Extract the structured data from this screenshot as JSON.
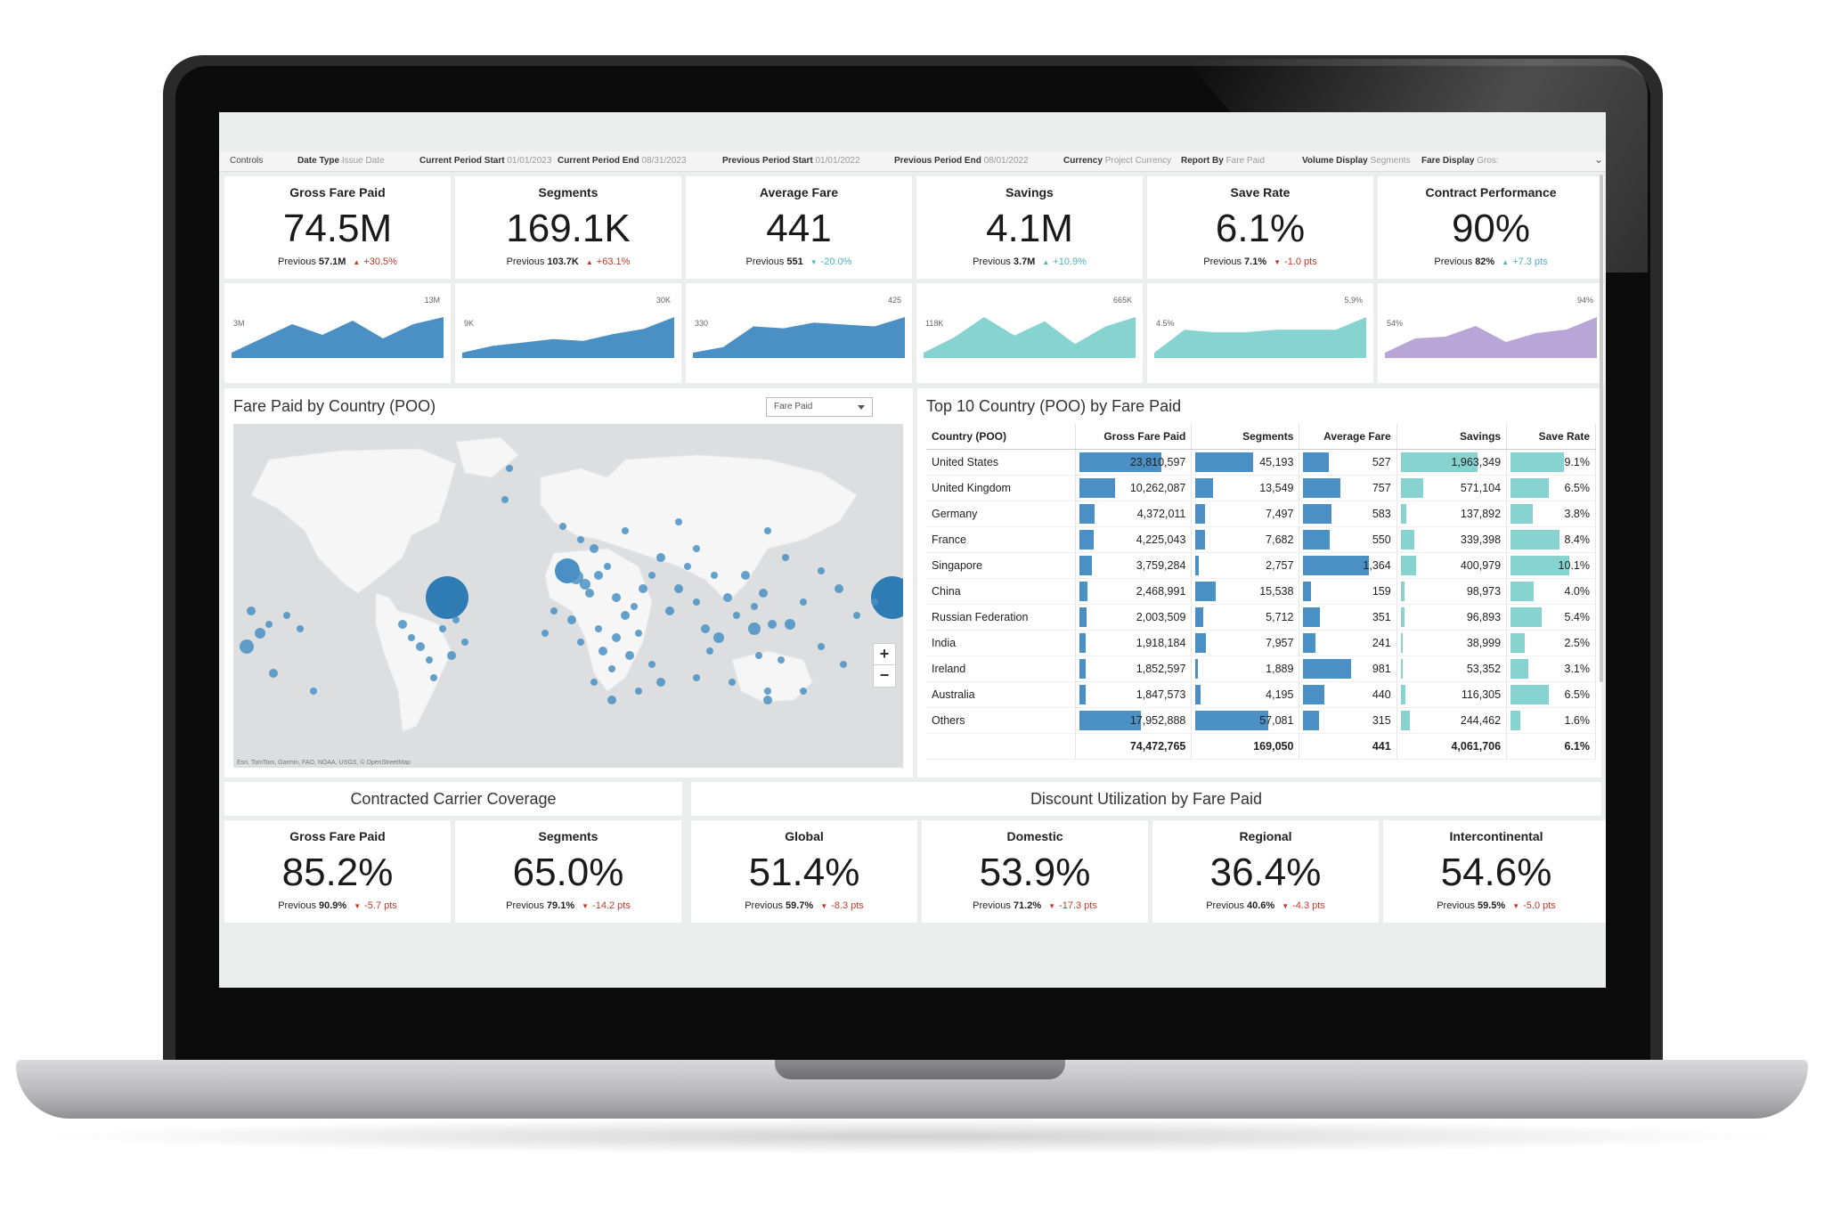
{
  "controls": {
    "label": "Controls",
    "items": [
      {
        "k": "Date Type",
        "v": "Issue Date"
      },
      {
        "k": "Current Period Start",
        "v": "01/01/2023"
      },
      {
        "k": "Current Period End",
        "v": "08/31/2023"
      },
      {
        "k": "Previous Period Start",
        "v": "01/01/2022"
      },
      {
        "k": "Previous Period End",
        "v": "08/01/2022"
      },
      {
        "k": "Currency",
        "v": "Project Currency"
      },
      {
        "k": "Report By",
        "v": "Fare Paid"
      },
      {
        "k": "Volume Display",
        "v": "Segments"
      },
      {
        "k": "Fare Display",
        "v": "Gros:"
      }
    ]
  },
  "kpis": [
    {
      "title": "Gross Fare Paid",
      "value": "74.5M",
      "prev_label": "Previous",
      "prev": "57.1M",
      "change": "+30.5%",
      "dir": "up",
      "tone": "red"
    },
    {
      "title": "Segments",
      "value": "169.1K",
      "prev_label": "Previous",
      "prev": "103.7K",
      "change": "+63.1%",
      "dir": "up",
      "tone": "red"
    },
    {
      "title": "Average Fare",
      "value": "441",
      "prev_label": "Previous",
      "prev": "551",
      "change": "-20.0%",
      "dir": "down",
      "tone": "teal"
    },
    {
      "title": "Savings",
      "value": "4.1M",
      "prev_label": "Previous",
      "prev": "3.7M",
      "change": "+10.9%",
      "dir": "up",
      "tone": "teal"
    },
    {
      "title": "Save Rate",
      "value": "6.1%",
      "prev_label": "Previous",
      "prev": "7.1%",
      "change": "-1.0 pts",
      "dir": "down",
      "tone": "red"
    },
    {
      "title": "Contract Performance",
      "value": "90%",
      "prev_label": "Previous",
      "prev": "82%",
      "change": "+7.3 pts",
      "dir": "up",
      "tone": "teal"
    }
  ],
  "sparklines": [
    {
      "lo": "3M",
      "hi": "13M",
      "color": "#4a90c4",
      "values": [
        3,
        7,
        11,
        8,
        12,
        7,
        11,
        13
      ]
    },
    {
      "lo": "9K",
      "hi": "30K",
      "color": "#4a90c4",
      "values": [
        9,
        13,
        15,
        17,
        16,
        20,
        23,
        30
      ]
    },
    {
      "lo": "330",
      "hi": "425",
      "color": "#4a90c4",
      "values": [
        330,
        345,
        400,
        395,
        410,
        405,
        400,
        425
      ]
    },
    {
      "lo": "118K",
      "hi": "665K",
      "color": "#86d3d0",
      "values": [
        118,
        350,
        665,
        380,
        600,
        250,
        520,
        665
      ]
    },
    {
      "lo": "4.5%",
      "hi": "5.9%",
      "color": "#86d3d0",
      "values": [
        4.5,
        5.4,
        5.3,
        5.3,
        5.4,
        5.4,
        5.4,
        5.9
      ]
    },
    {
      "lo": "54%",
      "hi": "94%",
      "color": "#b7a6d6",
      "values": [
        54,
        70,
        72,
        84,
        66,
        76,
        80,
        94
      ]
    }
  ],
  "map_panel": {
    "title": "Fare Paid by Country (POO)",
    "dropdown": "Fare Paid",
    "zoom_in": "+",
    "zoom_out": "−",
    "attribution": "Esri, TomTom, Garmin, FAO, NOAA, USGS, © OpenStreetMap"
  },
  "table_panel": {
    "title": "Top 10 Country (POO) by Fare Paid",
    "columns": [
      "Country (POO)",
      "Gross Fare Paid",
      "Segments",
      "Average Fare",
      "Savings",
      "Save Rate"
    ],
    "rows": [
      {
        "country": "United States",
        "gfp": "23,810,597",
        "seg": "45,193",
        "avg": "527",
        "sav": "1,963,349",
        "rate": "9.1%"
      },
      {
        "country": "United Kingdom",
        "gfp": "10,262,087",
        "seg": "13,549",
        "avg": "757",
        "sav": "571,104",
        "rate": "6.5%"
      },
      {
        "country": "Germany",
        "gfp": "4,372,011",
        "seg": "7,497",
        "avg": "583",
        "sav": "137,892",
        "rate": "3.8%"
      },
      {
        "country": "France",
        "gfp": "4,225,043",
        "seg": "7,682",
        "avg": "550",
        "sav": "339,398",
        "rate": "8.4%"
      },
      {
        "country": "Singapore",
        "gfp": "3,759,284",
        "seg": "2,757",
        "avg": "1,364",
        "sav": "400,979",
        "rate": "10.1%"
      },
      {
        "country": "China",
        "gfp": "2,468,991",
        "seg": "15,538",
        "avg": "159",
        "sav": "98,973",
        "rate": "4.0%"
      },
      {
        "country": "Russian Federation",
        "gfp": "2,003,509",
        "seg": "5,712",
        "avg": "351",
        "sav": "96,893",
        "rate": "5.4%"
      },
      {
        "country": "India",
        "gfp": "1,918,184",
        "seg": "7,957",
        "avg": "241",
        "sav": "38,999",
        "rate": "2.5%"
      },
      {
        "country": "Ireland",
        "gfp": "1,852,597",
        "seg": "1,889",
        "avg": "981",
        "sav": "53,352",
        "rate": "3.1%"
      },
      {
        "country": "Australia",
        "gfp": "1,847,573",
        "seg": "4,195",
        "avg": "440",
        "sav": "116,305",
        "rate": "6.5%"
      },
      {
        "country": "Others",
        "gfp": "17,952,888",
        "seg": "57,081",
        "avg": "315",
        "sav": "244,462",
        "rate": "1.6%"
      }
    ],
    "total": {
      "country": "",
      "gfp": "74,472,765",
      "seg": "169,050",
      "avg": "441",
      "sav": "4,061,706",
      "rate": "6.1%"
    }
  },
  "coverage": {
    "title": "Contracted Carrier Coverage",
    "kpis": [
      {
        "title": "Gross Fare Paid",
        "value": "85.2%",
        "prev_label": "Previous",
        "prev": "90.9%",
        "change": "-5.7 pts",
        "dir": "down",
        "tone": "red"
      },
      {
        "title": "Segments",
        "value": "65.0%",
        "prev_label": "Previous",
        "prev": "79.1%",
        "change": "-14.2 pts",
        "dir": "down",
        "tone": "red"
      }
    ]
  },
  "discount": {
    "title": "Discount Utilization by Fare Paid",
    "kpis": [
      {
        "title": "Global",
        "value": "51.4%",
        "prev_label": "Previous",
        "prev": "59.7%",
        "change": "-8.3 pts",
        "dir": "down",
        "tone": "red"
      },
      {
        "title": "Domestic",
        "value": "53.9%",
        "prev_label": "Previous",
        "prev": "71.2%",
        "change": "-17.3 pts",
        "dir": "down",
        "tone": "red"
      },
      {
        "title": "Regional",
        "value": "36.4%",
        "prev_label": "Previous",
        "prev": "40.6%",
        "change": "-4.3 pts",
        "dir": "down",
        "tone": "red"
      },
      {
        "title": "Intercontinental",
        "value": "54.6%",
        "prev_label": "Previous",
        "prev": "59.5%",
        "change": "-5.0 pts",
        "dir": "down",
        "tone": "red"
      }
    ]
  },
  "colors": {
    "bar_blue": "#4a90c4",
    "bar_teal": "#86d3d0",
    "accent_red": "#c0392b",
    "accent_teal": "#4fb3bf"
  }
}
